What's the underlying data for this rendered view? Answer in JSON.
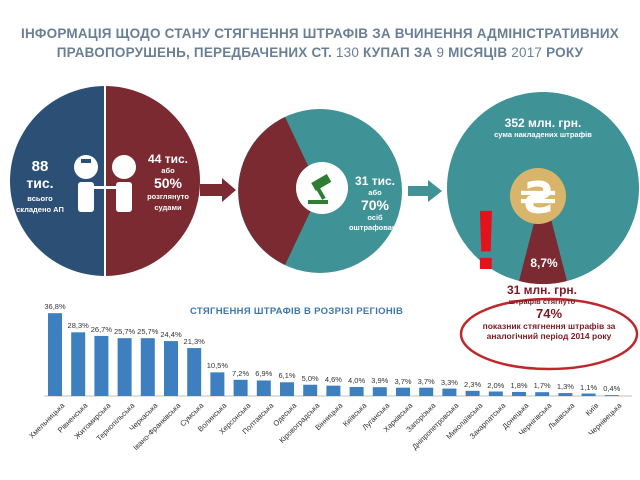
{
  "title": {
    "line1": "ІНФОРМАЦІЯ ЩОДО СТАНУ СТЯГНЕННЯ ШТРАФІВ ЗА ВЧИНЕННЯ АДМІНІСТРАТИВНИХ",
    "line2_a": "ПРАВОПОРУШЕНЬ, ПЕРЕДБАЧЕНИХ СТ.",
    "line2_num1": "130",
    "line2_b": "КУПАП ЗА",
    "line2_num2": "9",
    "line2_c": "МІСЯЦІВ",
    "line2_num3": "2017",
    "line2_d": "РОКУ"
  },
  "circle1": {
    "left_value": "88",
    "left_unit": "тис.",
    "left_caption": "всього складено АП",
    "right_value": "44 тис.",
    "right_or": "або",
    "right_percent": "50%",
    "right_caption": "розглянуто судами",
    "colors": {
      "left": "#2b4f75",
      "right": "#7a2a30"
    }
  },
  "circle2": {
    "value": "31 тис.",
    "or": "або",
    "percent": "70%",
    "caption": "осіб оштрафовано",
    "colors": {
      "main": "#3f9295",
      "slice": "#7a2a30"
    }
  },
  "circle3": {
    "total_value": "352 млн. грн.",
    "total_caption": "сума накладених штрафів",
    "slice_percent": "8,7%",
    "collected_value": "31 млн. грн.",
    "collected_caption": "штрафів стягнуто",
    "currency_icon": "hryvnia-icon",
    "colors": {
      "main": "#3f9295",
      "slice": "#7a2a30",
      "coin": "#d8b56a"
    }
  },
  "exclamation": "!",
  "callout": {
    "percent": "74%",
    "text": "показник стягнення штрафів за аналогічний період 2014 року"
  },
  "chart_data": {
    "type": "bar",
    "title": "СТЯГНЕННЯ ШТРАФІВ В РОЗРІЗІ РЕГІОНІВ",
    "categories": [
      "Хмельницька",
      "Рівненська",
      "Житомирська",
      "Тернопільська",
      "Черкаська",
      "Івано-Франківська",
      "Сумська",
      "Волинська",
      "Херсонська",
      "Полтавська",
      "Одеська",
      "Кіровоградська",
      "Вінницька",
      "Київська",
      "Луганська",
      "Харківська",
      "Запорізька",
      "Дніпропетровська",
      "Миколаївська",
      "Закарпатська",
      "Донецька",
      "Чернігівська",
      "Львівська",
      "Київ",
      "Чернівецька"
    ],
    "values": [
      36.8,
      28.3,
      26.7,
      25.7,
      25.7,
      24.4,
      21.3,
      10.5,
      7.2,
      6.9,
      6.1,
      5.0,
      4.6,
      4.0,
      3.9,
      3.7,
      3.7,
      3.3,
      2.3,
      2.0,
      1.8,
      1.7,
      1.3,
      1.1,
      0.4
    ],
    "labels": [
      "36,8%",
      "28,3%",
      "26,7%",
      "25,7%",
      "25,7%",
      "24,4%",
      "21,3%",
      "10,5%",
      "7,2%",
      "6,9%",
      "6,1%",
      "5,0%",
      "4,6%",
      "4,0%",
      "3,9%",
      "3,7%",
      "3,7%",
      "3,3%",
      "2,3%",
      "2,0%",
      "1,8%",
      "1,7%",
      "1,3%",
      "1,1%",
      "0,4%"
    ],
    "ylim": [
      0,
      40
    ],
    "xlabel": "",
    "ylabel": "",
    "bar_color": "#3d7fbf"
  }
}
